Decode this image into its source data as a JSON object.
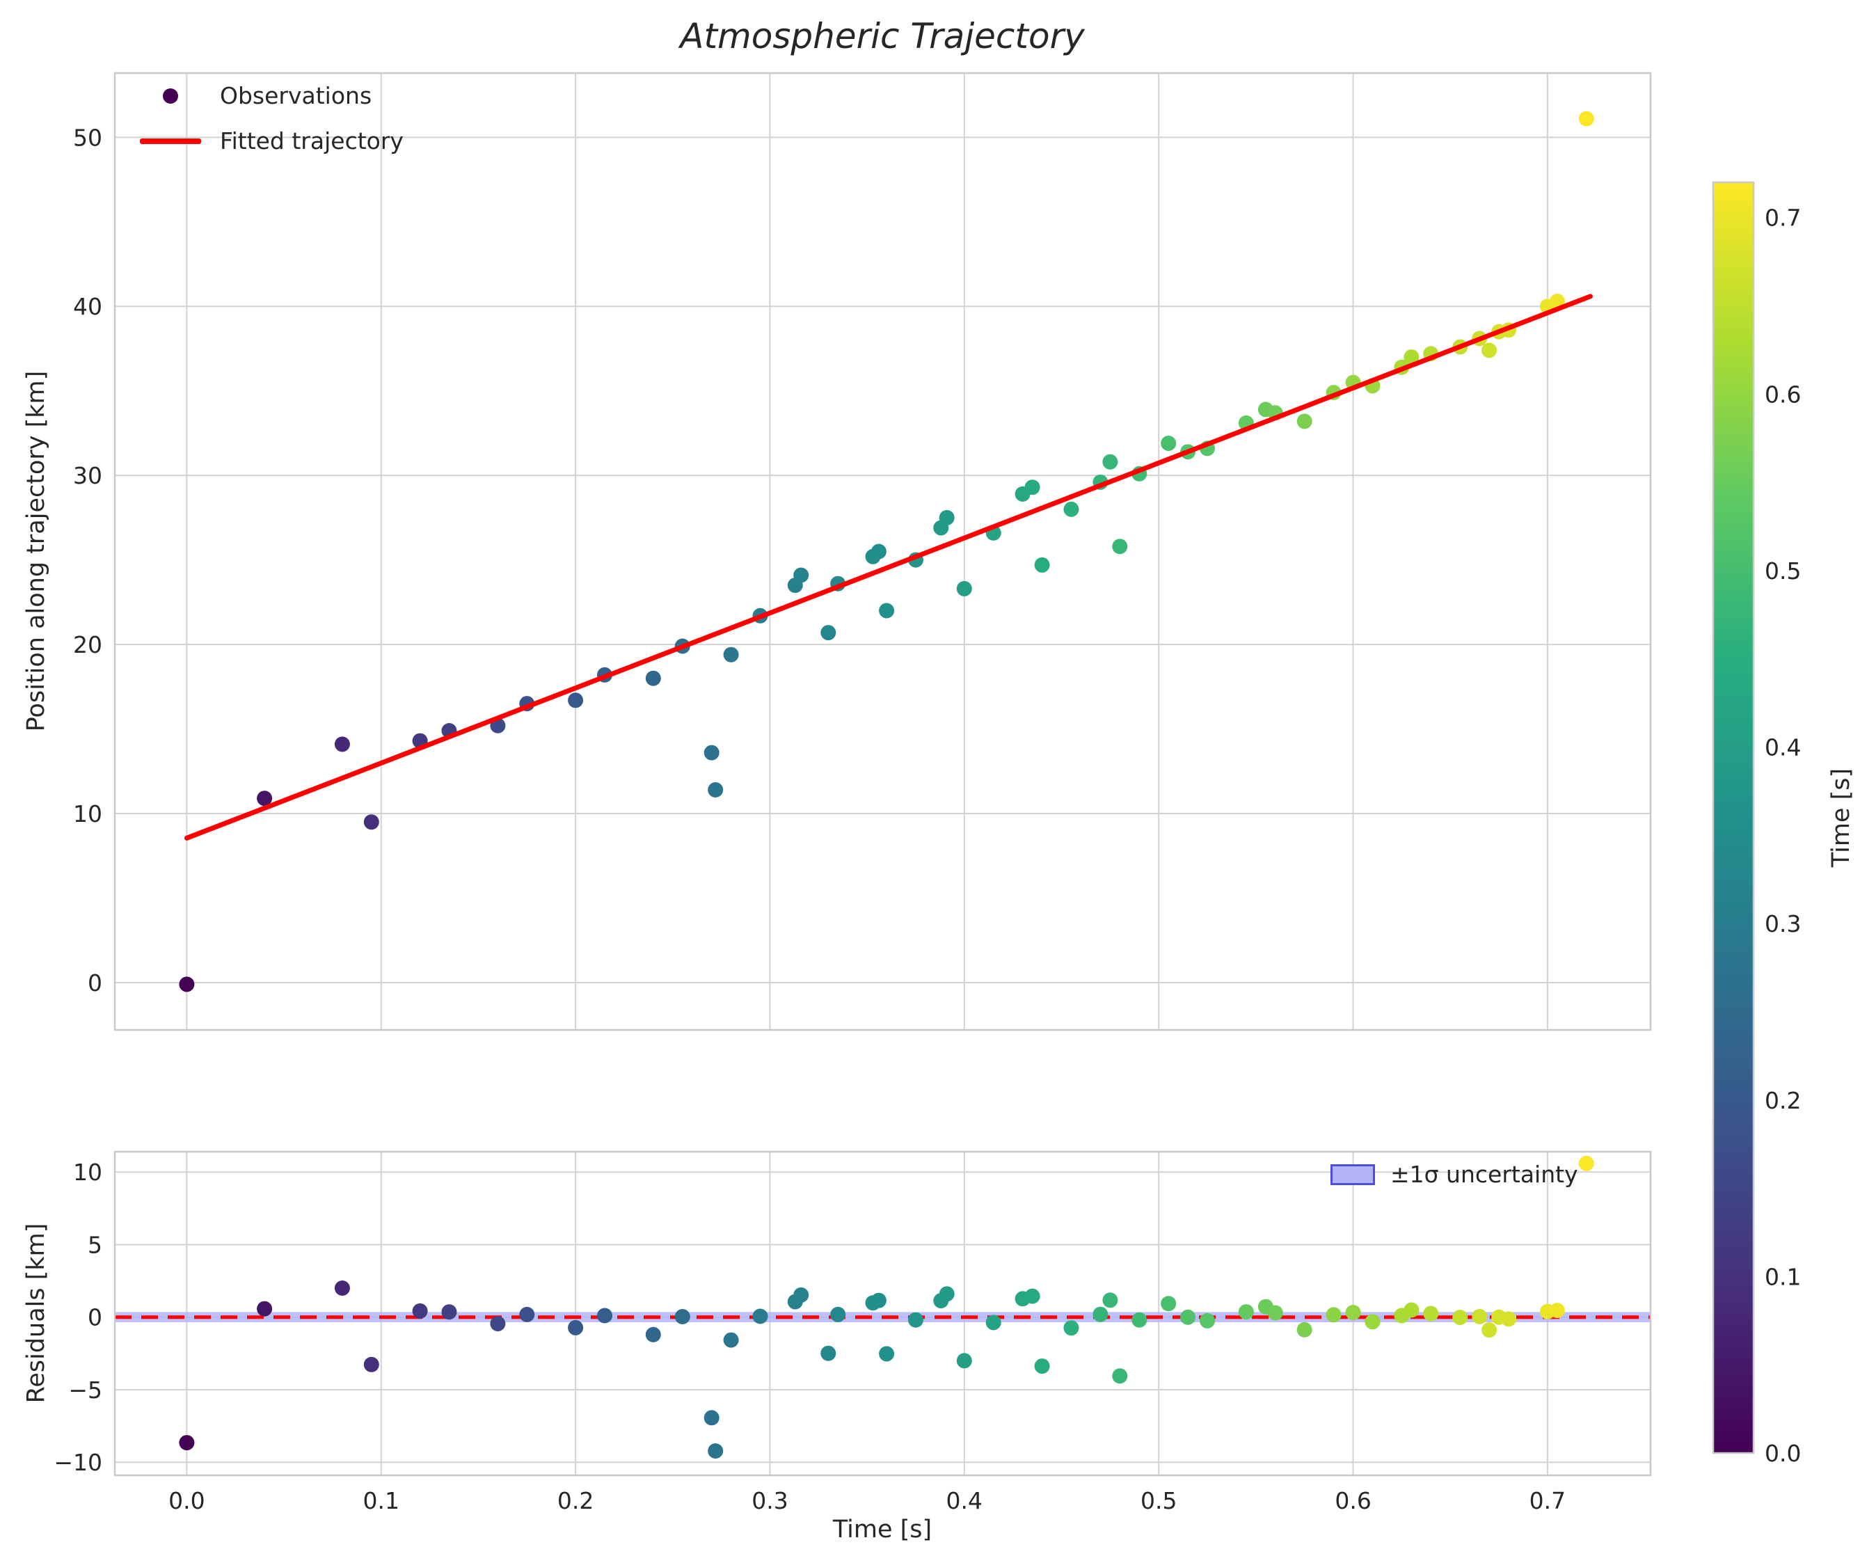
{
  "chart_data": {
    "type": "scatter",
    "title": "Atmospheric Trajectory",
    "xlabel": "Time [s]",
    "ylabel_top": "Position along trajectory [km]",
    "ylabel_bottom": "Residuals [km]",
    "xlim": [
      -0.037,
      0.753
    ],
    "ylim_top": [
      -2.8,
      53.8
    ],
    "ylim_bottom": [
      -10.9,
      11.4
    ],
    "xticks": [
      0.0,
      0.1,
      0.2,
      0.3,
      0.4,
      0.5,
      0.6,
      0.7
    ],
    "yticks_top": [
      0,
      10,
      20,
      30,
      40,
      50
    ],
    "yticks_bottom": [
      -10,
      -5,
      0,
      5,
      10
    ],
    "grid": true,
    "legend_top_position": "upper left",
    "legend_residuals_position": "upper right",
    "fit": {
      "label": "Fitted trajectory",
      "color": "#ff0000",
      "intercept_km": 8.55,
      "slope_km_per_s": 44.38,
      "x_start": 0.0,
      "x_end": 0.722
    },
    "observations": {
      "label": "Observations",
      "colormap": "viridis",
      "color_by": "time",
      "t": [
        0.0,
        0.04,
        0.08,
        0.095,
        0.12,
        0.135,
        0.16,
        0.175,
        0.2,
        0.215,
        0.24,
        0.255,
        0.27,
        0.272,
        0.28,
        0.295,
        0.313,
        0.316,
        0.33,
        0.335,
        0.353,
        0.356,
        0.36,
        0.375,
        0.388,
        0.391,
        0.4,
        0.415,
        0.43,
        0.435,
        0.44,
        0.455,
        0.47,
        0.475,
        0.48,
        0.49,
        0.505,
        0.515,
        0.525,
        0.545,
        0.555,
        0.56,
        0.575,
        0.59,
        0.6,
        0.61,
        0.625,
        0.63,
        0.64,
        0.655,
        0.665,
        0.67,
        0.675,
        0.68,
        0.7,
        0.705,
        0.72
      ],
      "y": [
        -0.1,
        10.9,
        14.1,
        9.5,
        14.3,
        14.9,
        15.2,
        16.5,
        16.7,
        18.2,
        18.0,
        19.9,
        13.6,
        11.4,
        19.4,
        21.7,
        23.5,
        24.1,
        20.7,
        23.6,
        25.2,
        25.5,
        22.0,
        25.0,
        26.9,
        27.5,
        23.3,
        26.6,
        28.9,
        29.3,
        24.7,
        28.0,
        29.6,
        30.8,
        25.8,
        30.1,
        31.9,
        31.4,
        31.6,
        33.1,
        33.9,
        33.7,
        33.2,
        34.9,
        35.5,
        35.3,
        36.4,
        37.0,
        37.2,
        37.6,
        38.1,
        37.4,
        38.5,
        38.6,
        40.0,
        40.3,
        51.1
      ]
    },
    "residual_band": {
      "label": "±1σ uncertainty",
      "halfwidth_km": 0.35,
      "fill": "#b4b4f8",
      "edge": "#4d4ddf"
    },
    "colorbar": {
      "label": "Time [s]",
      "vmin": 0.0,
      "vmax": 0.72,
      "ticks": [
        0.0,
        0.1,
        0.2,
        0.3,
        0.4,
        0.5,
        0.6,
        0.7
      ],
      "colormap": "viridis"
    },
    "colors": {
      "background": "#ffffff",
      "grid": "#d2d2d2",
      "spine": "#c8c8c8",
      "text": "#262626",
      "viridis_anchors": [
        "#440154",
        "#472d7b",
        "#3b528b",
        "#2c728e",
        "#21918c",
        "#28ae80",
        "#5ec962",
        "#addc30",
        "#fde725"
      ]
    }
  }
}
